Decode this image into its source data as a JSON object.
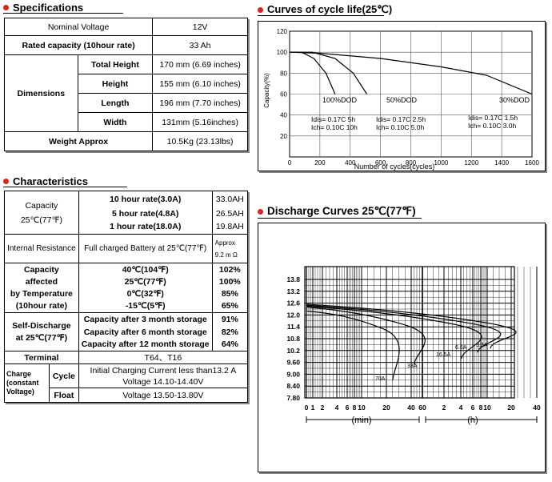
{
  "specifications": {
    "title": "Specifications",
    "rows": [
      {
        "label": "Nominal Voltage",
        "value": "12V"
      },
      {
        "label": "Rated capacity (10hour rate)",
        "value": "33 Ah"
      }
    ],
    "dimensions_label": "Dimensions",
    "dimensions": [
      {
        "label": "Total Height",
        "value": "170 mm (6.69 inches)"
      },
      {
        "label": "Height",
        "value": "155 mm (6.10 inches)"
      },
      {
        "label": "Length",
        "value": "196 mm (7.70 inches)"
      },
      {
        "label": "Width",
        "value": "131mm (5.16inches)"
      }
    ],
    "weight": {
      "label": "Weight Approx",
      "value": "10.5Kg (23.13lbs)"
    }
  },
  "characteristics": {
    "title": "Characteristics",
    "capacity": {
      "label": "Capacity",
      "sub": "25℃(77℉)",
      "rows": [
        {
          "rate": "10 hour rate(3.0A)",
          "value": "33.0AH"
        },
        {
          "rate": "5 hour rate(4.8A)",
          "value": "26.5AH"
        },
        {
          "rate": "1 hour rate(18.0A)",
          "value": "19.8AH"
        }
      ]
    },
    "internal_resistance": {
      "label": "Internal Resistance",
      "cond": "Full charged Battery at 25℃(77℉)",
      "approx": "Approx",
      "value": "9.2 m Ω"
    },
    "cap_by_temp": {
      "label_lines": [
        "Capacity",
        "affected",
        "by Temperature",
        "(10hour rate)"
      ],
      "rows": [
        {
          "temp": "40℃(104℉)",
          "value": "102%"
        },
        {
          "temp": "25℃(77℉)",
          "value": "100%"
        },
        {
          "temp": "0℃(32℉)",
          "value": "85%"
        },
        {
          "temp": "-15℃(5℉)",
          "value": "65%"
        }
      ]
    },
    "self_discharge": {
      "label_lines": [
        "Self-Discharge",
        "at 25℃(77℉)"
      ],
      "rows": [
        {
          "cond": "Capacity after 3 month storage",
          "value": "91%"
        },
        {
          "cond": "Capacity after 6 month storage",
          "value": "82%"
        },
        {
          "cond": "Capacity after 12 month storage",
          "value": "64%"
        }
      ]
    },
    "terminal": {
      "label": "Terminal",
      "value": "T64、T16"
    },
    "charge": {
      "label_lines": [
        "Charge",
        "(constant",
        "Voltage)"
      ],
      "cycle_label": "Cycle",
      "cycle_lines": [
        "Initial Charging Current less than13.2 A",
        "Voltage 14.10-14.40V"
      ],
      "float_label": "Float",
      "float_value": "Voltage 13.50-13.80V"
    }
  },
  "cycle_chart": {
    "title": "Curves of cycle life(25℃)",
    "ylabel": "Capacity(%)",
    "xlabel": "Number of cycles(cycles)",
    "y_ticks": [
      "120",
      "100",
      "80",
      "60",
      "40",
      "20"
    ],
    "x_ticks": [
      "0",
      "200",
      "400",
      "600",
      "800",
      "1000",
      "1200",
      "1400",
      "1600"
    ],
    "curve_labels": [
      "100%DOD",
      "50%DOD",
      "30%DOD"
    ],
    "legend": [
      {
        "lines": [
          "Idis= 0.17C  5h",
          "Ich= 0.10C 10h"
        ]
      },
      {
        "lines": [
          "Idis= 0.17C  2.5h",
          "Ich= 0.10C  5.0h"
        ]
      },
      {
        "lines": [
          "Idis= 0.17C  1.5h",
          "Ich= 0.10C  3.0h"
        ]
      }
    ]
  },
  "chart_data": [
    {
      "type": "line",
      "title": "Curves of cycle life(25℃)",
      "xlabel": "Number of cycles(cycles)",
      "ylabel": "Capacity(%)",
      "xlim": [
        0,
        1600
      ],
      "ylim": [
        0,
        120
      ],
      "series": [
        {
          "name": "100%DOD",
          "x": [
            0,
            80,
            160,
            240,
            300
          ],
          "y": [
            100,
            100,
            94,
            80,
            60
          ]
        },
        {
          "name": "50%DOD",
          "x": [
            0,
            150,
            300,
            420,
            510
          ],
          "y": [
            100,
            100,
            94,
            80,
            60
          ]
        },
        {
          "name": "30%DOD",
          "x": [
            0,
            200,
            600,
            1000,
            1300,
            1600
          ],
          "y": [
            100,
            99,
            94,
            86,
            78,
            60
          ]
        }
      ]
    },
    {
      "type": "line",
      "title": "Discharge Curves 25℃(77℉)",
      "y_ticks": [
        "13.8",
        "13.2",
        "12.6",
        "12.0",
        "11.4",
        "10.8",
        "10.2",
        "9.60",
        "9.00",
        "8.40",
        "7.80"
      ],
      "x_ticks": [
        "0",
        "1",
        "2",
        "4",
        "6",
        "8",
        "10",
        "20",
        "40",
        "60",
        "2",
        "4",
        "6",
        "8",
        "10",
        "20",
        "40"
      ],
      "series": [
        {
          "name": "70A"
        },
        {
          "name": "33A"
        },
        {
          "name": "16.5A"
        },
        {
          "name": "6.6A"
        },
        {
          "name": "3.3A"
        }
      ]
    }
  ],
  "discharge_chart": {
    "title": "Discharge Curves 25℃(77℉)",
    "y_ticks": [
      "13.8",
      "13.2",
      "12.6",
      "12.0",
      "11.4",
      "10.8",
      "10.2",
      "9.60",
      "9.00",
      "8.40",
      "7.80"
    ],
    "x_ticks": [
      "0",
      "1",
      "2",
      "4",
      "6",
      "8",
      "10",
      "20",
      "40",
      "60",
      "2",
      "4",
      "6",
      "8",
      "10",
      "20",
      "40"
    ],
    "min_label": "(min)",
    "h_label": "(h)",
    "curve_labels": [
      "70A",
      "33A",
      "16.5A",
      "6.6A",
      "3.3A"
    ]
  }
}
